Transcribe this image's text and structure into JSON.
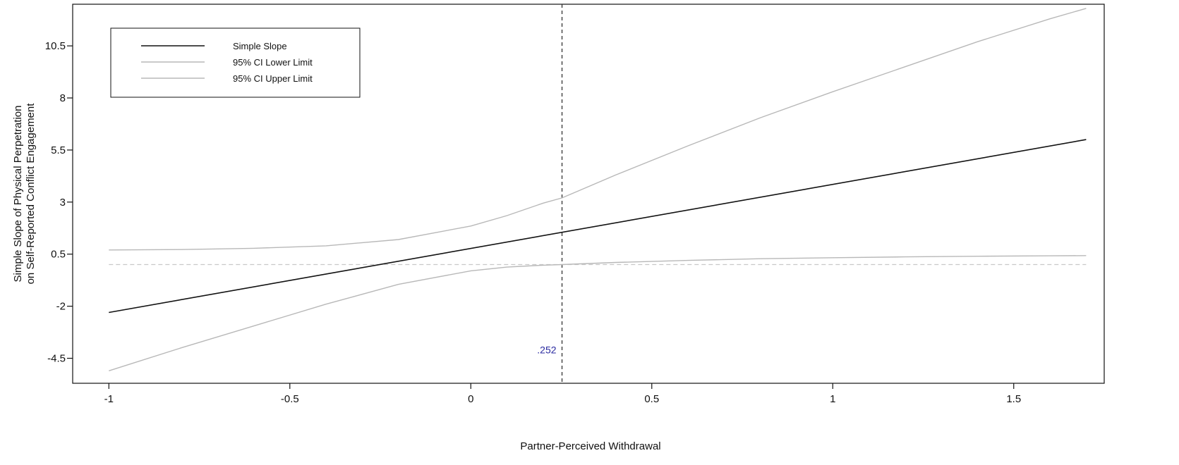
{
  "chart_data": {
    "type": "line",
    "xlabel": "Partner-Perceived Withdrawal",
    "ylabel_lines": [
      "Simple Slope of Physical Perpetration",
      "on Self-Reported Conflict Engagement"
    ],
    "xlim": [
      -1.1,
      1.75
    ],
    "ylim": [
      -5.7,
      12.5
    ],
    "x_ticks": [
      -1,
      -0.5,
      0,
      0.5,
      1,
      1.5
    ],
    "x_tick_labels": [
      "-1",
      "-0.5",
      "0",
      "0.5",
      "1",
      "1.5"
    ],
    "y_ticks": [
      -4.5,
      -2,
      0.5,
      3,
      5.5,
      8,
      10.5
    ],
    "y_tick_labels": [
      "-4.5",
      "-2",
      "0.5",
      "3",
      "5.5",
      "8",
      "10.5"
    ],
    "grid": false,
    "legend_position": "top-left",
    "series": [
      {
        "name": "Simple Slope",
        "color": "#111111",
        "x": [
          -1,
          1.7
        ],
        "y": [
          -2.3,
          6.0
        ]
      },
      {
        "name": "95% CI Lower Limit",
        "color": "#b8b8b8",
        "x": [
          -1,
          -0.8,
          -0.6,
          -0.4,
          -0.2,
          0,
          0.1,
          0.2,
          0.252,
          0.4,
          0.6,
          0.8,
          1.0,
          1.2,
          1.4,
          1.6,
          1.7
        ],
        "y": [
          -5.1,
          -4.0,
          -2.95,
          -1.9,
          -0.95,
          -0.3,
          -0.12,
          -0.03,
          0.0,
          0.1,
          0.2,
          0.28,
          0.33,
          0.37,
          0.4,
          0.42,
          0.43
        ]
      },
      {
        "name": "95% CI Upper Limit",
        "color": "#b8b8b8",
        "x": [
          -1,
          -0.8,
          -0.6,
          -0.4,
          -0.2,
          0,
          0.1,
          0.2,
          0.252,
          0.4,
          0.6,
          0.8,
          1.0,
          1.2,
          1.4,
          1.6,
          1.7
        ],
        "y": [
          0.7,
          0.72,
          0.78,
          0.9,
          1.2,
          1.85,
          2.35,
          2.95,
          3.2,
          4.3,
          5.7,
          7.05,
          8.3,
          9.5,
          10.7,
          11.8,
          12.3
        ]
      }
    ],
    "reference_lines": {
      "vertical_x": 0.252,
      "horizontal_y": 0
    },
    "annotation": {
      "text": ".252",
      "x": 0.252,
      "y": -4.1,
      "color": "#2a2aa0"
    }
  }
}
